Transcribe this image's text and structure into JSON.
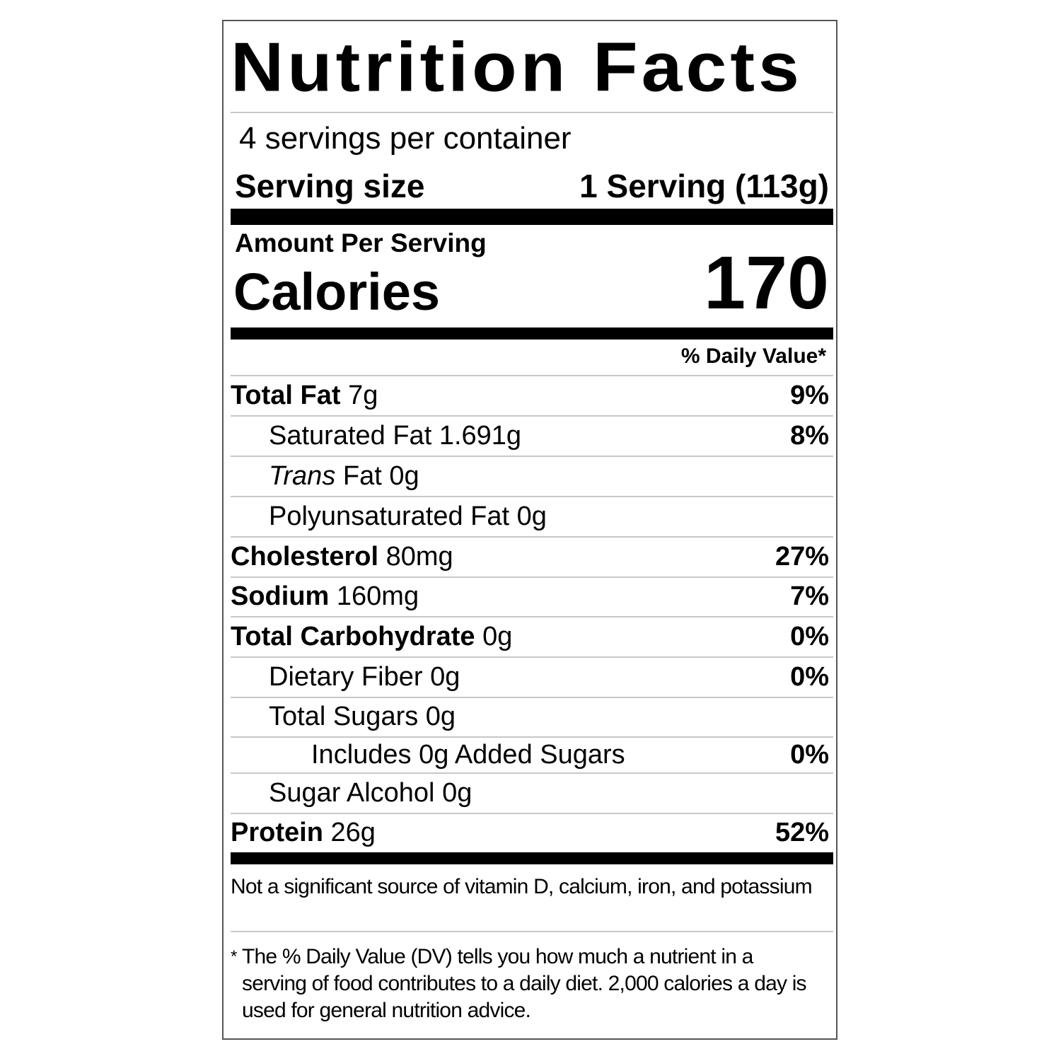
{
  "title": "Nutrition Facts",
  "servings_per_container": "4 servings per container",
  "serving_size": {
    "label": "Serving size",
    "value": "1 Serving (113g)"
  },
  "amount_per_serving": "Amount Per Serving",
  "calories": {
    "label": "Calories",
    "value": "170"
  },
  "daily_value_header": "% Daily Value*",
  "nutrients": [
    {
      "name": "Total Fat",
      "amount": "7g",
      "dv": "9%",
      "bold": true,
      "indent": 0
    },
    {
      "name": "Saturated Fat",
      "amount": "1.691g",
      "dv": "8%",
      "bold": false,
      "indent": 1
    },
    {
      "name_italic": "Trans",
      "name": "Fat",
      "amount": "0g",
      "dv": "",
      "bold": false,
      "indent": 1
    },
    {
      "name": "Polyunsaturated Fat",
      "amount": "0g",
      "dv": "",
      "bold": false,
      "indent": 1
    },
    {
      "name": "Cholesterol",
      "amount": "80mg",
      "dv": "27%",
      "bold": true,
      "indent": 0
    },
    {
      "name": "Sodium",
      "amount": "160mg",
      "dv": "7%",
      "bold": true,
      "indent": 0
    },
    {
      "name": "Total Carbohydrate",
      "amount": "0g",
      "dv": "0%",
      "bold": true,
      "indent": 0
    },
    {
      "name": "Dietary Fiber",
      "amount": "0g",
      "dv": "0%",
      "bold": false,
      "indent": 1
    },
    {
      "name": "Total Sugars",
      "amount": "0g",
      "dv": "",
      "bold": false,
      "indent": 1
    },
    {
      "name": "Includes 0g Added Sugars",
      "amount": "",
      "dv": "0%",
      "bold": false,
      "indent": 2
    },
    {
      "name": "Sugar Alcohol",
      "amount": "0g",
      "dv": "",
      "bold": false,
      "indent": 1
    },
    {
      "name": "Protein",
      "amount": "26g",
      "dv": "52%",
      "bold": true,
      "indent": 0
    }
  ],
  "not_significant": "Not a significant source of vitamin D, calcium, iron, and potassium",
  "footnote_star": "*",
  "footnote": "The % Daily Value (DV) tells you how much a nutrient in a serving of food contributes to a daily diet. 2,000 calories a day is used for general nutrition advice."
}
